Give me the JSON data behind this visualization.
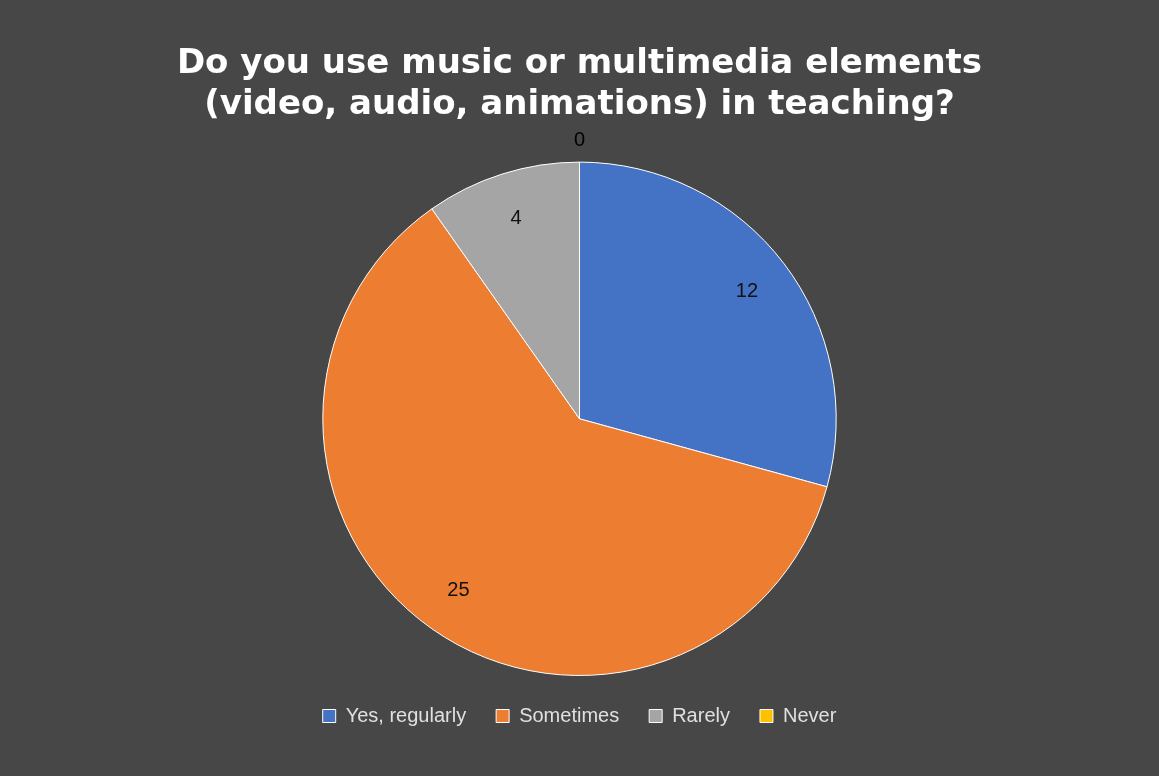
{
  "chart_data": {
    "type": "pie",
    "title": "Do you use music or multimedia elements (video, audio, animations) in teaching?",
    "categories": [
      "Yes, regularly",
      "Sometimes",
      "Rarely",
      "Never"
    ],
    "values": [
      12,
      25,
      4,
      0
    ],
    "colors": [
      "#4472c4",
      "#ed7d31",
      "#a5a5a5",
      "#ffc000"
    ],
    "value_labels": [
      "12",
      "25",
      "4",
      "0"
    ],
    "legend": "bottom"
  }
}
